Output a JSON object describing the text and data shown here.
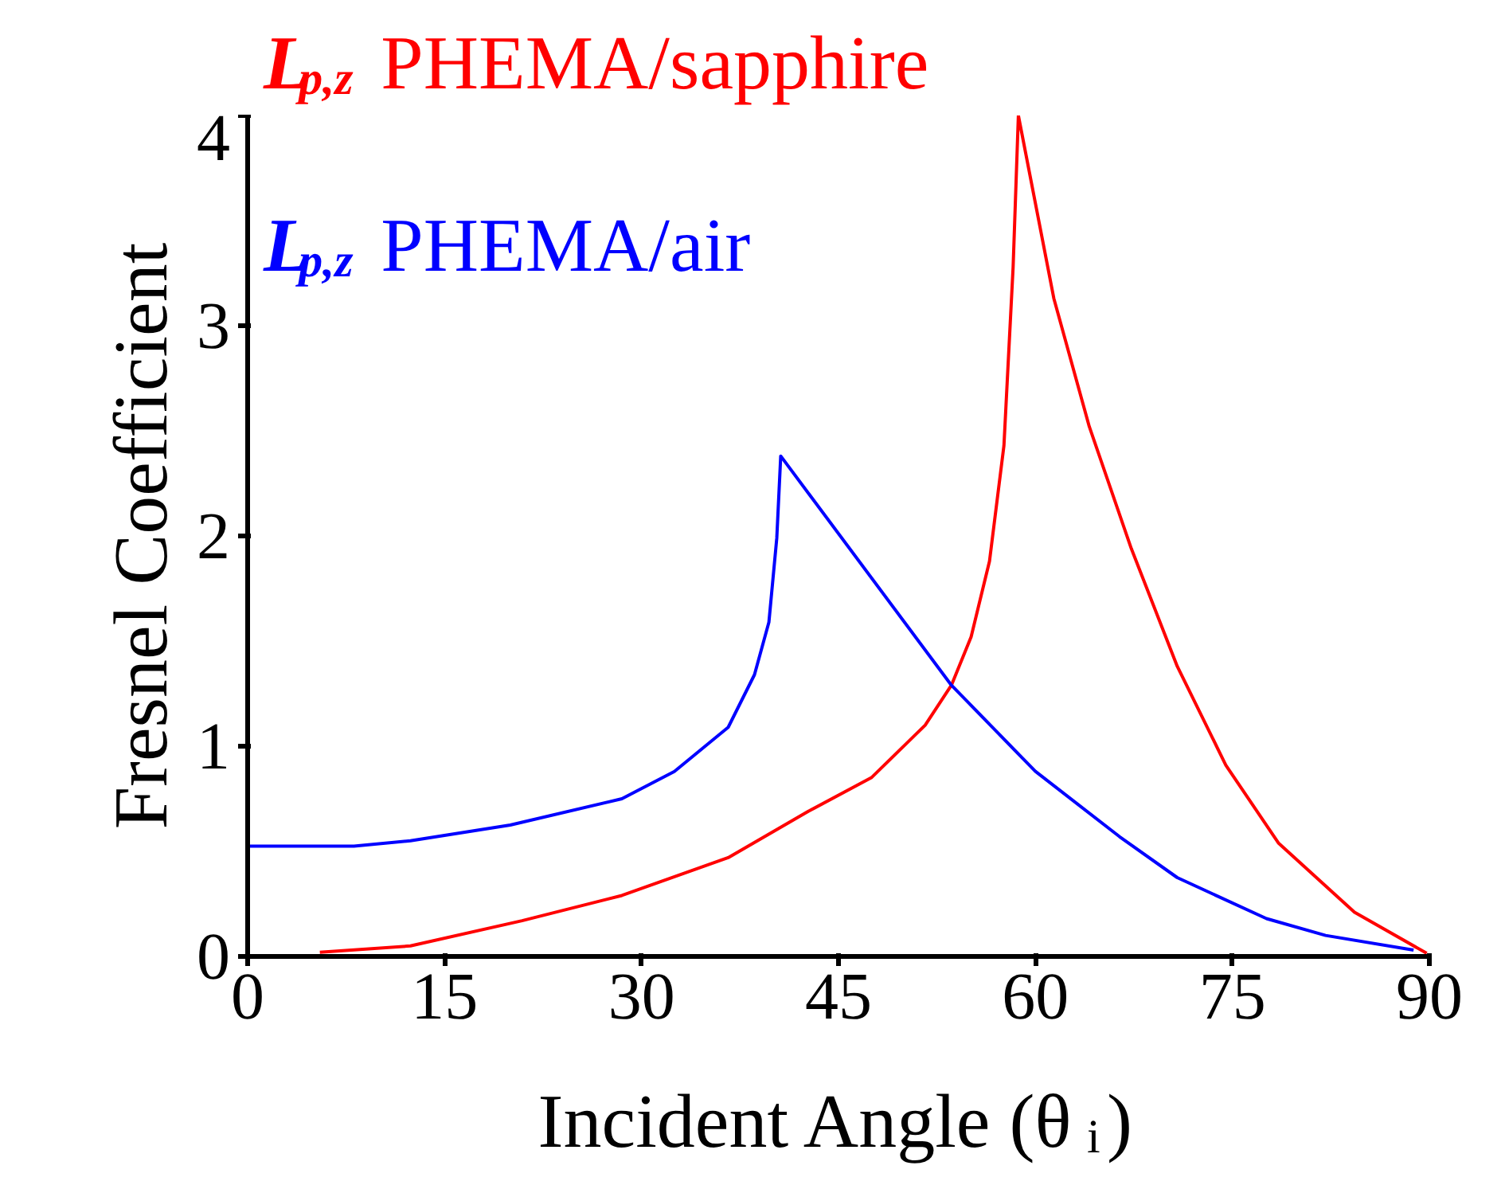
{
  "chart_data": {
    "type": "line",
    "xlabel": "Incident Angle (θ$_{i}$)",
    "ylabel": "Fresnel Coefficient",
    "xlim": [
      0,
      90
    ],
    "ylim": [
      0,
      4
    ],
    "xticks": [
      0,
      15,
      30,
      45,
      60,
      75,
      90
    ],
    "yticks": [
      0,
      1,
      2,
      3,
      4
    ],
    "grid": false,
    "legend": "top left",
    "marker": "none",
    "line_style": "solid",
    "series": [
      {
        "name": "L$_{p,z}$ PHEMA/sapphire",
        "color": "#ff0000",
        "x": [
          5.5,
          12.4,
          20.9,
          28.5,
          36.6,
          42.7,
          47.5,
          51.6,
          53.6,
          55.1,
          56.5,
          57.6,
          58.3,
          58.7,
          61.4,
          64.1,
          67.3,
          70.8,
          74.5,
          78.5,
          84.3,
          89.8
        ],
        "values": [
          0.02,
          0.05,
          0.17,
          0.29,
          0.47,
          0.69,
          0.85,
          1.1,
          1.29,
          1.52,
          1.88,
          2.43,
          3.28,
          4.0,
          3.13,
          2.52,
          1.94,
          1.38,
          0.91,
          0.54,
          0.21,
          0.015
        ]
      },
      {
        "name": "L$_{p,z}$ PHEMA/air",
        "color": "#0000ff",
        "x": [
          0,
          8.1,
          12.4,
          20,
          28.5,
          32.5,
          36.6,
          38.6,
          39.7,
          40.3,
          40.6,
          53.6,
          60,
          66.4,
          70.8,
          77.6,
          82.1,
          88.8
        ],
        "values": [
          0.525,
          0.525,
          0.55,
          0.625,
          0.75,
          0.88,
          1.09,
          1.34,
          1.59,
          1.99,
          2.38,
          1.29,
          0.88,
          0.57,
          0.375,
          0.18,
          0.1,
          0.03
        ]
      }
    ]
  }
}
